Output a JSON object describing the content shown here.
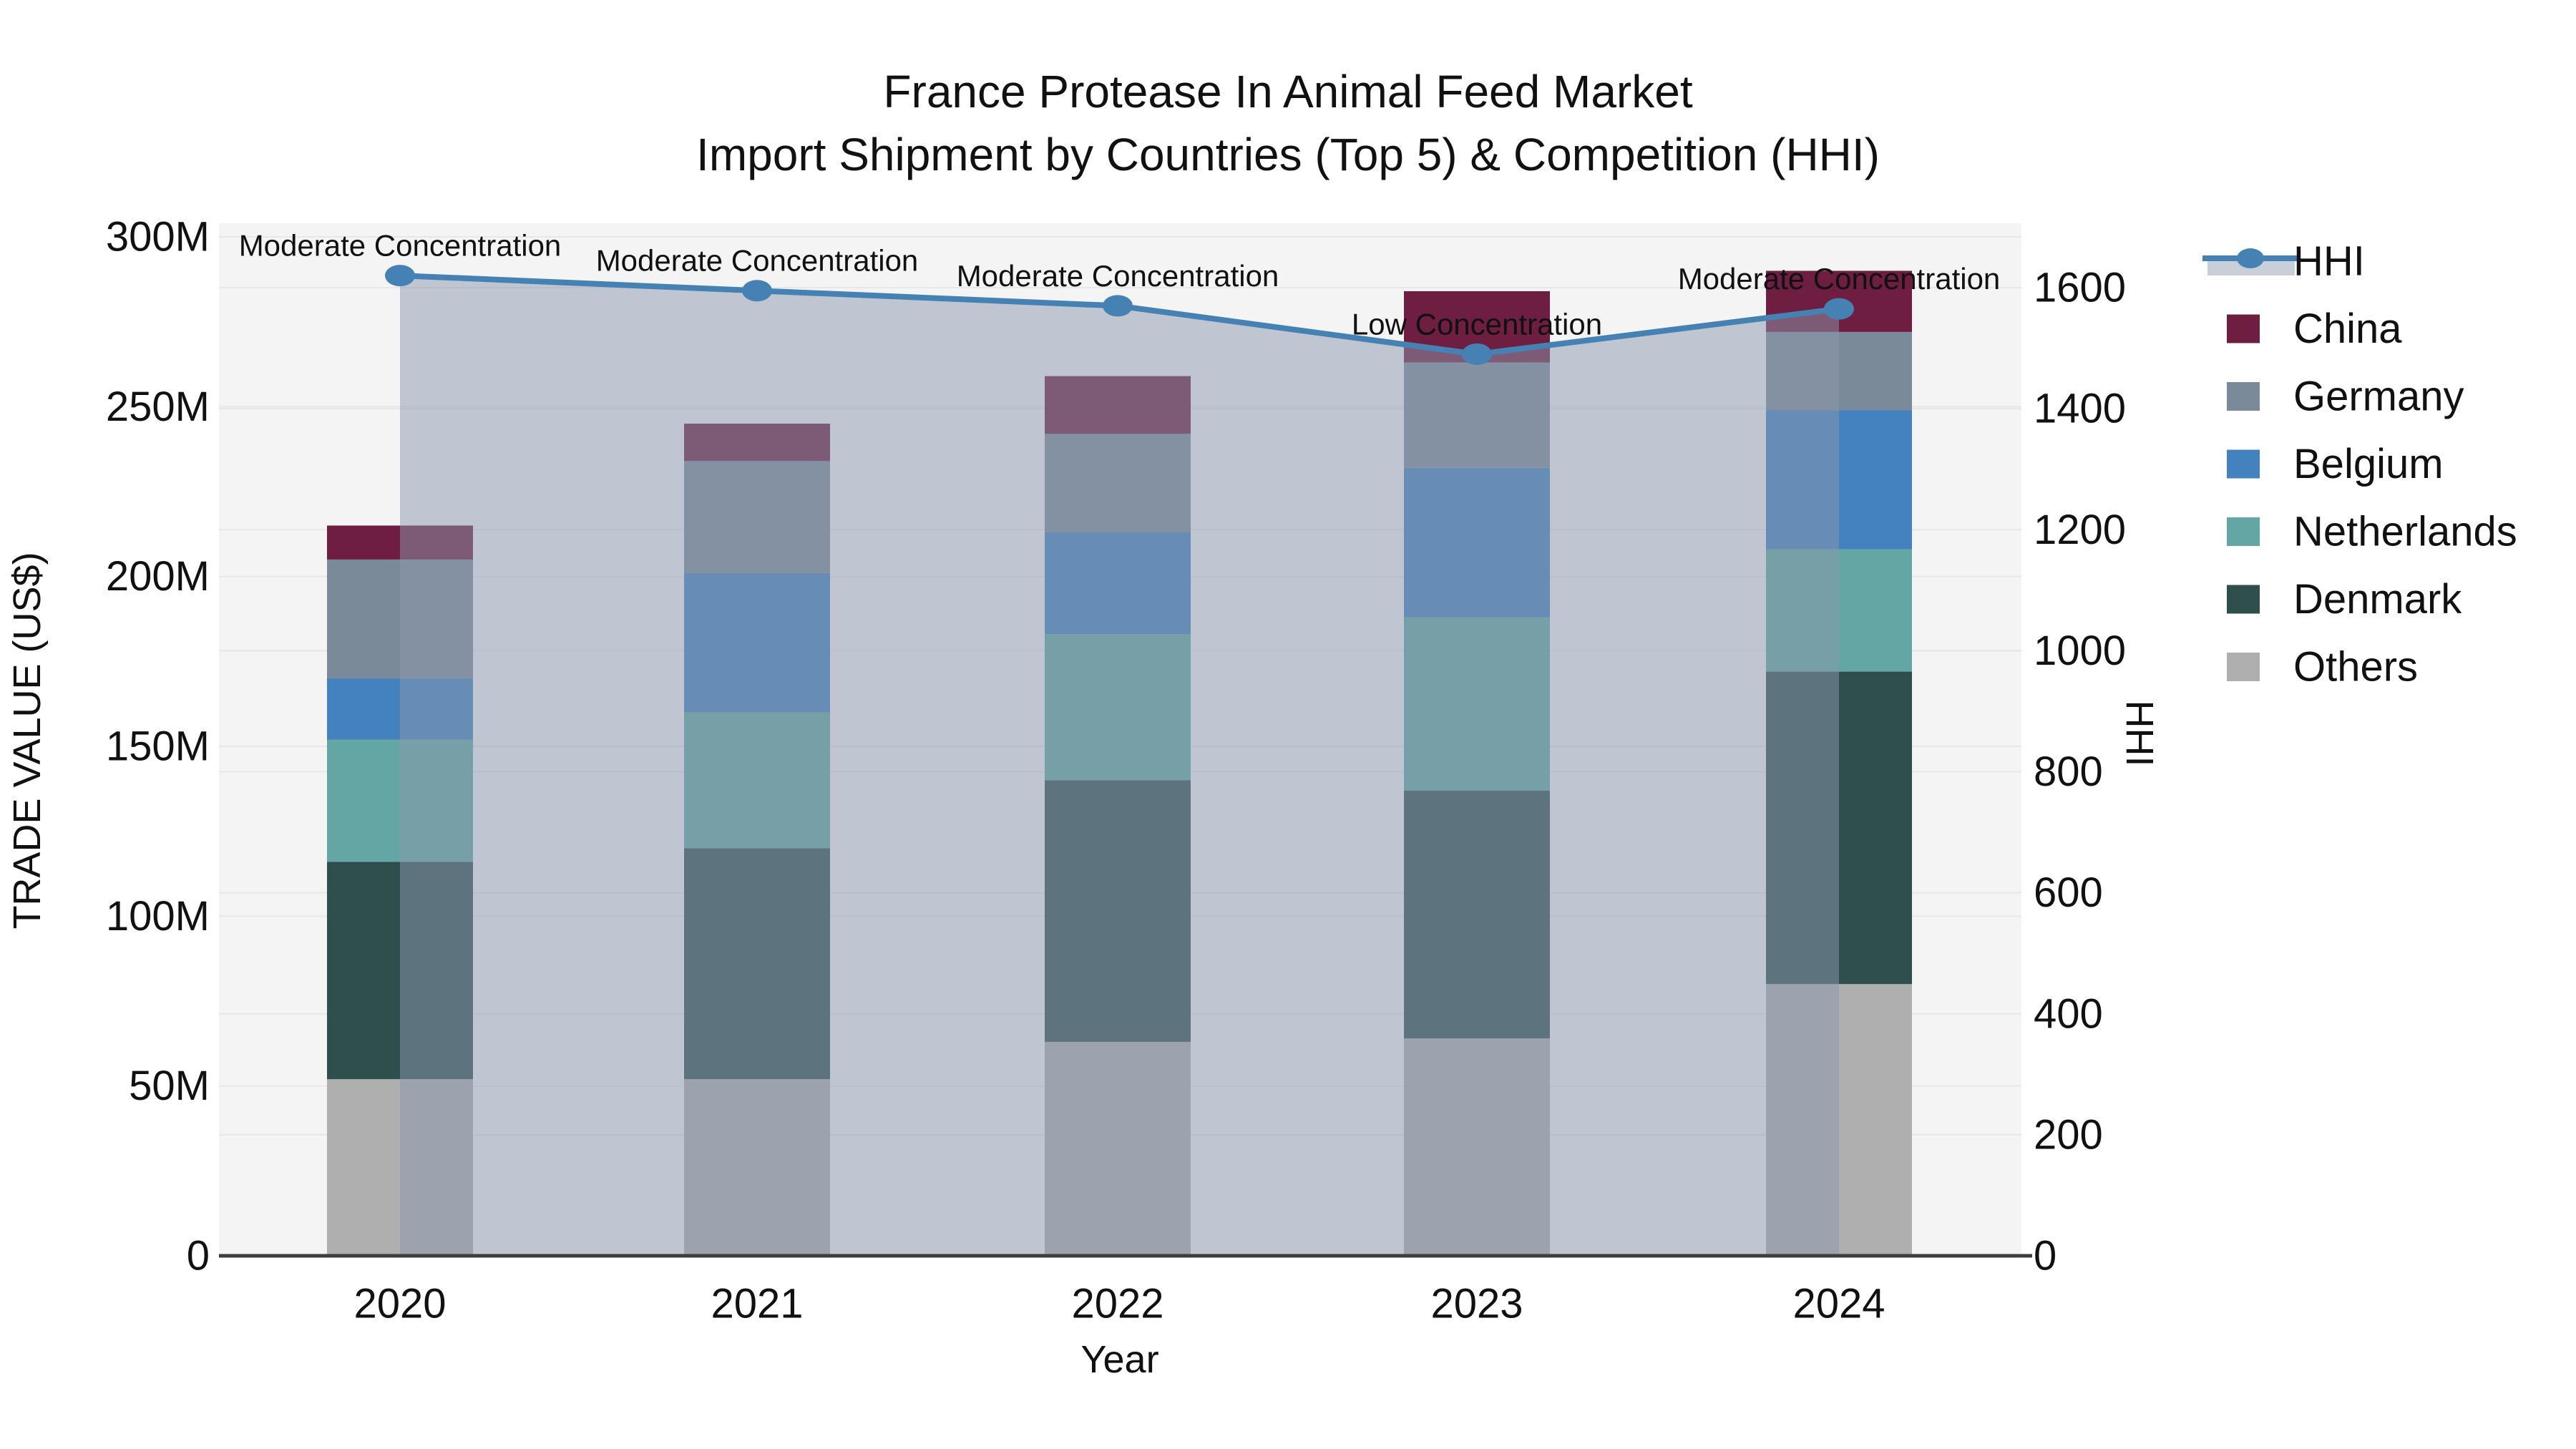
{
  "title": {
    "line1": "France Protease In Animal Feed Market",
    "line2": "Import Shipment by Countries (Top 5) & Competition (HHI)"
  },
  "axes": {
    "x": {
      "label": "Year",
      "categories": [
        "2020",
        "2021",
        "2022",
        "2023",
        "2024"
      ]
    },
    "left": {
      "label": "TRADE VALUE (US$)",
      "ticks": [
        "0",
        "50M",
        "100M",
        "150M",
        "200M",
        "250M",
        "300M"
      ],
      "tick_values_m": [
        0,
        50,
        100,
        150,
        200,
        250,
        300
      ]
    },
    "right": {
      "label": "HHI",
      "ticks": [
        "0",
        "200",
        "400",
        "600",
        "800",
        "1000",
        "1200",
        "1400",
        "1600"
      ],
      "tick_values": [
        0,
        200,
        400,
        600,
        800,
        1000,
        1200,
        1400,
        1600
      ]
    }
  },
  "legend": {
    "items": [
      {
        "label": "HHI",
        "type": "line",
        "color": "#4681b4",
        "band_color": "#c9cfd8"
      },
      {
        "label": "China",
        "type": "swatch",
        "color": "#6e1f41"
      },
      {
        "label": "Germany",
        "type": "swatch",
        "color": "#7b8a99"
      },
      {
        "label": "Belgium",
        "type": "swatch",
        "color": "#4381bf"
      },
      {
        "label": "Netherlands",
        "type": "swatch",
        "color": "#63a6a3"
      },
      {
        "label": "Denmark",
        "type": "swatch",
        "color": "#2f4f4c"
      },
      {
        "label": "Others",
        "type": "swatch",
        "color": "#afafaf"
      }
    ]
  },
  "chart_data": {
    "type": "bar+line",
    "title": "France Protease In Animal Feed Market — Import Shipment by Countries (Top 5) & Competition (HHI)",
    "categories": [
      "2020",
      "2021",
      "2022",
      "2023",
      "2024"
    ],
    "xlabel": "Year",
    "ylabel_left": "TRADE VALUE (US$)",
    "ylabel_right": "HHI",
    "ylim_left_millions": [
      0,
      300
    ],
    "ylim_right": [
      0,
      1600
    ],
    "grid": true,
    "legend_position": "right",
    "bar_stack_order_bottom_to_top": [
      "Others",
      "Denmark",
      "Netherlands",
      "Belgium",
      "Germany",
      "China"
    ],
    "series": [
      {
        "name": "Others",
        "unit": "M US$",
        "color": "#afafaf",
        "values": [
          52,
          52,
          63,
          64,
          80
        ]
      },
      {
        "name": "Denmark",
        "unit": "M US$",
        "color": "#2f4f4c",
        "values": [
          64,
          68,
          77,
          73,
          92
        ]
      },
      {
        "name": "Netherlands",
        "unit": "M US$",
        "color": "#63a6a3",
        "values": [
          36,
          40,
          43,
          51,
          36
        ]
      },
      {
        "name": "Belgium",
        "unit": "M US$",
        "color": "#4381bf",
        "values": [
          18,
          41,
          30,
          44,
          41
        ]
      },
      {
        "name": "Germany",
        "unit": "M US$",
        "color": "#7b8a99",
        "values": [
          35,
          33,
          29,
          31,
          23
        ]
      },
      {
        "name": "China",
        "unit": "M US$",
        "color": "#6e1f41",
        "values": [
          10,
          11,
          17,
          21,
          18
        ]
      }
    ],
    "line": {
      "name": "HHI",
      "values": [
        1620,
        1595,
        1570,
        1490,
        1565
      ],
      "color": "#4681b4",
      "area_fill": "rgba(139,151,173,0.5)"
    },
    "annotations": [
      "Moderate Concentration",
      "Moderate Concentration",
      "Moderate Concentration",
      "Low Concentration",
      "Moderate Concentration"
    ]
  },
  "colors": {
    "plot_bg": "#f4f4f4",
    "grid": "#e7e7e7",
    "axis_line": "#3d3d3d",
    "text": "#111111"
  }
}
